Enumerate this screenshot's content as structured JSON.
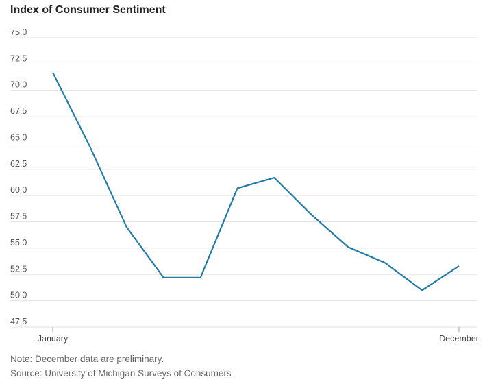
{
  "chart_data": {
    "type": "line",
    "title": "Index of Consumer Sentiment",
    "categories": [
      "January",
      null,
      null,
      null,
      null,
      null,
      null,
      null,
      null,
      null,
      null,
      "December"
    ],
    "values": [
      71.7,
      64.7,
      57.0,
      52.2,
      52.2,
      60.7,
      61.7,
      58.2,
      55.1,
      53.6,
      51.0,
      53.3
    ],
    "color": "#1f7aa8",
    "ylim": [
      47.5,
      75
    ],
    "yticks": [
      {
        "value": 47.5,
        "label": "47.5"
      },
      {
        "value": 50,
        "label": "50.0"
      },
      52.5,
      {
        "value": 55,
        "label": "55.0"
      },
      57.5,
      {
        "value": 60,
        "label": "60.0"
      },
      62.5,
      {
        "value": 65,
        "label": "65.0"
      },
      67.5,
      {
        "value": 70,
        "label": "70.0"
      },
      72.5,
      {
        "value": 75,
        "label": "75.0"
      }
    ],
    "grid": true,
    "note": "Note: December data are preliminary.",
    "source": "Source: University of Michigan Surveys of Consumers"
  }
}
